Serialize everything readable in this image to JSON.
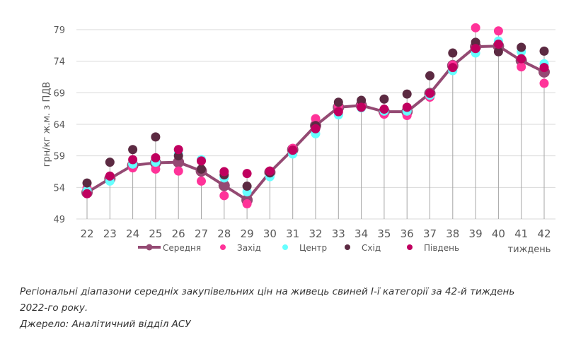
{
  "chart_data": {
    "type": "scatter",
    "ylabel": "грн/кг ж.м. з ПДВ",
    "xlabel": "тиждень",
    "ylim": [
      49,
      79
    ],
    "yticks": [
      49,
      54,
      59,
      64,
      69,
      74,
      79
    ],
    "grid": true,
    "legend_position": "bottom",
    "categories": [
      "22",
      "23",
      "24",
      "25",
      "26",
      "27",
      "28",
      "29",
      "30",
      "31",
      "32",
      "33",
      "34",
      "35",
      "36",
      "37",
      "38",
      "39",
      "40",
      "41",
      "42"
    ],
    "series": [
      {
        "name": "Середня",
        "type": "line",
        "color": "#944a73",
        "values": [
          53.2,
          55.4,
          57.5,
          57.9,
          58.0,
          56.6,
          54.3,
          52.0,
          56.4,
          60.0,
          63.8,
          66.7,
          67.0,
          66.0,
          66.0,
          68.9,
          73.3,
          76.3,
          76.4,
          74.1,
          72.3
        ]
      },
      {
        "name": "Захід",
        "type": "scatter",
        "color": "#ff3399",
        "values": [
          53.9,
          55.6,
          57.1,
          56.9,
          56.6,
          55.0,
          52.7,
          51.4,
          56.0,
          60.2,
          64.9,
          66.9,
          66.9,
          65.6,
          65.4,
          68.3,
          73.4,
          79.3,
          78.8,
          73.1,
          70.5
        ]
      },
      {
        "name": "Центр",
        "type": "scatter",
        "color": "#66ffff",
        "values": [
          53.5,
          55.0,
          57.7,
          58.0,
          59.3,
          58.4,
          55.5,
          53.3,
          55.7,
          59.3,
          62.5,
          65.5,
          66.6,
          66.1,
          66.1,
          68.6,
          72.5,
          75.3,
          77.2,
          75.5,
          73.6
        ]
      },
      {
        "name": "Схід",
        "type": "scatter",
        "color": "#5c2a42",
        "values": [
          54.7,
          58.0,
          60.0,
          62.0,
          59.0,
          56.9,
          56.0,
          54.2,
          56.3,
          59.9,
          63.8,
          67.5,
          67.8,
          68.0,
          68.8,
          71.7,
          75.3,
          77.0,
          75.5,
          76.2,
          75.6
        ]
      },
      {
        "name": "Південь",
        "type": "scatter",
        "color": "#c0005f",
        "values": [
          53.0,
          55.8,
          58.4,
          58.7,
          60.0,
          58.2,
          56.5,
          56.2,
          56.6,
          59.9,
          63.3,
          66.0,
          66.7,
          66.4,
          66.7,
          68.9,
          73.0,
          76.0,
          76.7,
          74.4,
          73.0
        ]
      }
    ]
  },
  "caption": {
    "line1": "Регіональні діапазони середніх закупівельних цін на живець свиней І-ї категорії за 42-й тиждень",
    "line2": "2022-го року.",
    "line3": "Джерело: Аналітичний відділ АСУ"
  }
}
